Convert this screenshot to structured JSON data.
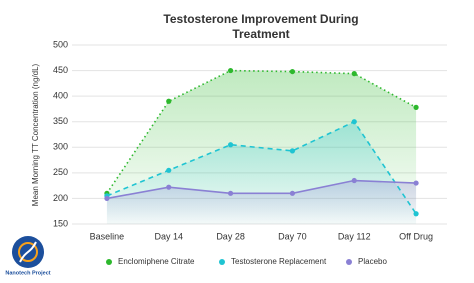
{
  "chart_data": {
    "type": "line",
    "title": "Testosterone Improvement During Treatment",
    "y_label": "Mean Morning TT Concentration (ng/dL)",
    "categories": [
      "Baseline",
      "Day 14",
      "Day 28",
      "Day 70",
      "Day 112",
      "Off Drug"
    ],
    "series": [
      {
        "name": "Enclomiphene Citrate",
        "color": "#2db82d",
        "values": [
          210,
          390,
          450,
          448,
          444,
          378
        ]
      },
      {
        "name": "Testosterone Replacement",
        "color": "#1fc4d2",
        "values": [
          205,
          255,
          305,
          293,
          350,
          170
        ]
      },
      {
        "name": "Placebo",
        "color": "#8a80d4",
        "values": [
          200,
          222,
          210,
          210,
          235,
          230
        ]
      }
    ],
    "ylim": [
      150,
      500
    ],
    "yticks": [
      150,
      200,
      250,
      300,
      350,
      400,
      450,
      500
    ],
    "grid": true
  },
  "logo_text": "Nanotech Project"
}
